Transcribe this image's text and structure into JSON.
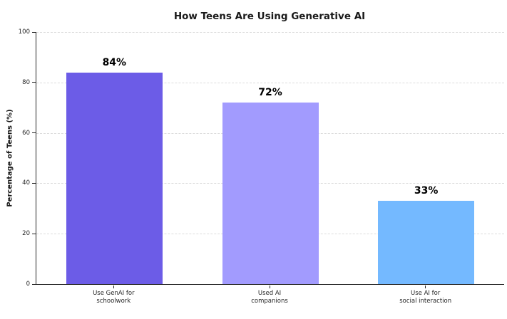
{
  "chart_data": {
    "type": "bar",
    "title": "How Teens Are Using Generative AI",
    "xlabel": "",
    "ylabel": "Percentage of Teens (%)",
    "categories": [
      "Use GenAI for\nschoolwork",
      "Used AI\ncompanions",
      "Use AI for\nsocial interaction"
    ],
    "values": [
      84,
      72,
      33
    ],
    "value_labels": [
      "84%",
      "72%",
      "33%"
    ],
    "bar_colors": [
      "#6c5ce7",
      "#a29bfe",
      "#74b9ff"
    ],
    "ylim": [
      0,
      100
    ],
    "yticks": [
      "0",
      "20",
      "40",
      "60",
      "80",
      "100"
    ],
    "grid": "horizontal-dashed",
    "gridline_color": "#dcdcdc",
    "axis_color": "#262626",
    "legend": "none",
    "background_color": "#ffffff"
  }
}
